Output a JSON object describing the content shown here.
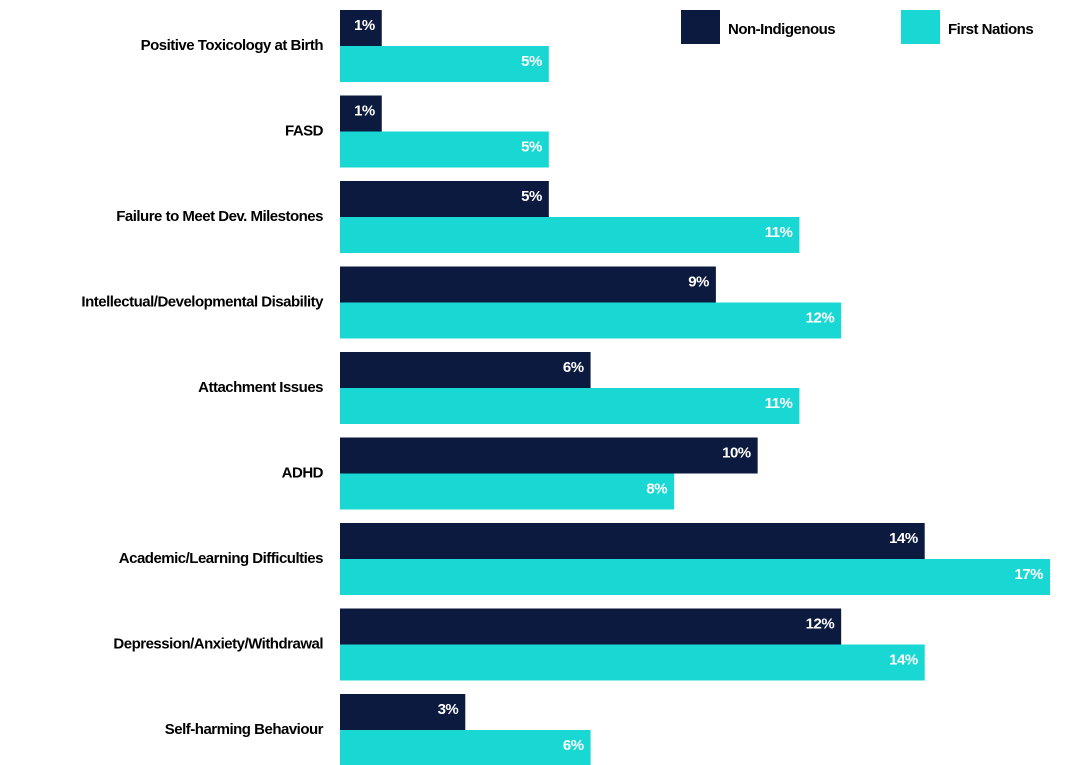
{
  "chart_data": {
    "type": "barh",
    "categories": [
      "Positive Toxicology at Birth",
      "FASD",
      "Failure to Meet Dev. Milestones",
      "Intellectual/Developmental Disability",
      "Attachment Issues",
      "ADHD",
      "Academic/Learning Difficulties",
      "Depression/Anxiety/Withdrawal",
      "Self-harming Behaviour"
    ],
    "series": [
      {
        "name": "Non-Indigenous",
        "color": "#0b1a3e",
        "values": [
          1,
          1,
          5,
          9,
          6,
          10,
          14,
          12,
          3
        ],
        "value_labels": [
          "1%",
          "1%",
          "5%",
          "9%",
          "6%",
          "10%",
          "14%",
          "12%",
          "3%"
        ]
      },
      {
        "name": "First Nations",
        "color": "#19d8d3",
        "values": [
          5,
          5,
          11,
          12,
          11,
          8,
          17,
          14,
          6
        ],
        "value_labels": [
          "5%",
          "5%",
          "11%",
          "12%",
          "11%",
          "8%",
          "17%",
          "14%",
          "6%"
        ]
      }
    ],
    "xlim": [
      0,
      17
    ],
    "legend": "top-right"
  }
}
